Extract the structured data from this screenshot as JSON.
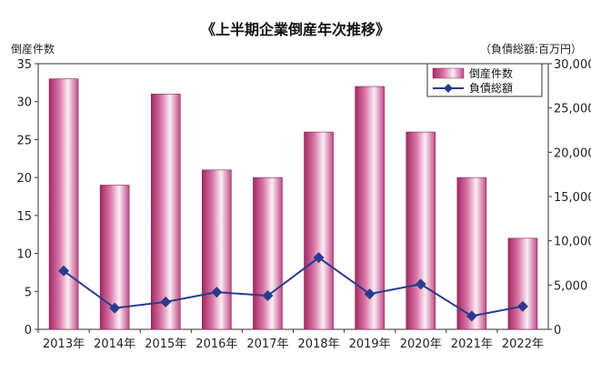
{
  "chart_data": {
    "type": "bar",
    "title": "《上半期企業倒産年次推移》",
    "ylabel_left": "倒産件数",
    "ylabel_right": "（負債総額:百万円）",
    "categories": [
      "2013年",
      "2014年",
      "2015年",
      "2016年",
      "2017年",
      "2018年",
      "2019年",
      "2020年",
      "2021年",
      "2022年"
    ],
    "series": [
      {
        "name": "倒産件数",
        "type": "bar",
        "axis": "left",
        "values": [
          33,
          19,
          31,
          21,
          20,
          26,
          32,
          26,
          20,
          12
        ]
      },
      {
        "name": "負債総額",
        "type": "line",
        "axis": "right",
        "values": [
          6600,
          2400,
          3100,
          4200,
          3800,
          8100,
          4000,
          5100,
          1500,
          2600
        ]
      }
    ],
    "ylim_left": [
      0,
      35
    ],
    "yticks_left": [
      "0",
      "5",
      "10",
      "15",
      "20",
      "25",
      "30",
      "35"
    ],
    "ylim_right": [
      0,
      30000
    ],
    "yticks_right": [
      "0",
      "5,000",
      "10,000",
      "15,000",
      "20,000",
      "25,000",
      "30,000"
    ],
    "legend_position": "top-right",
    "colors": {
      "bar": "#c0407e",
      "bar_light": "#fbeef5",
      "line": "#2b3a8c"
    }
  }
}
